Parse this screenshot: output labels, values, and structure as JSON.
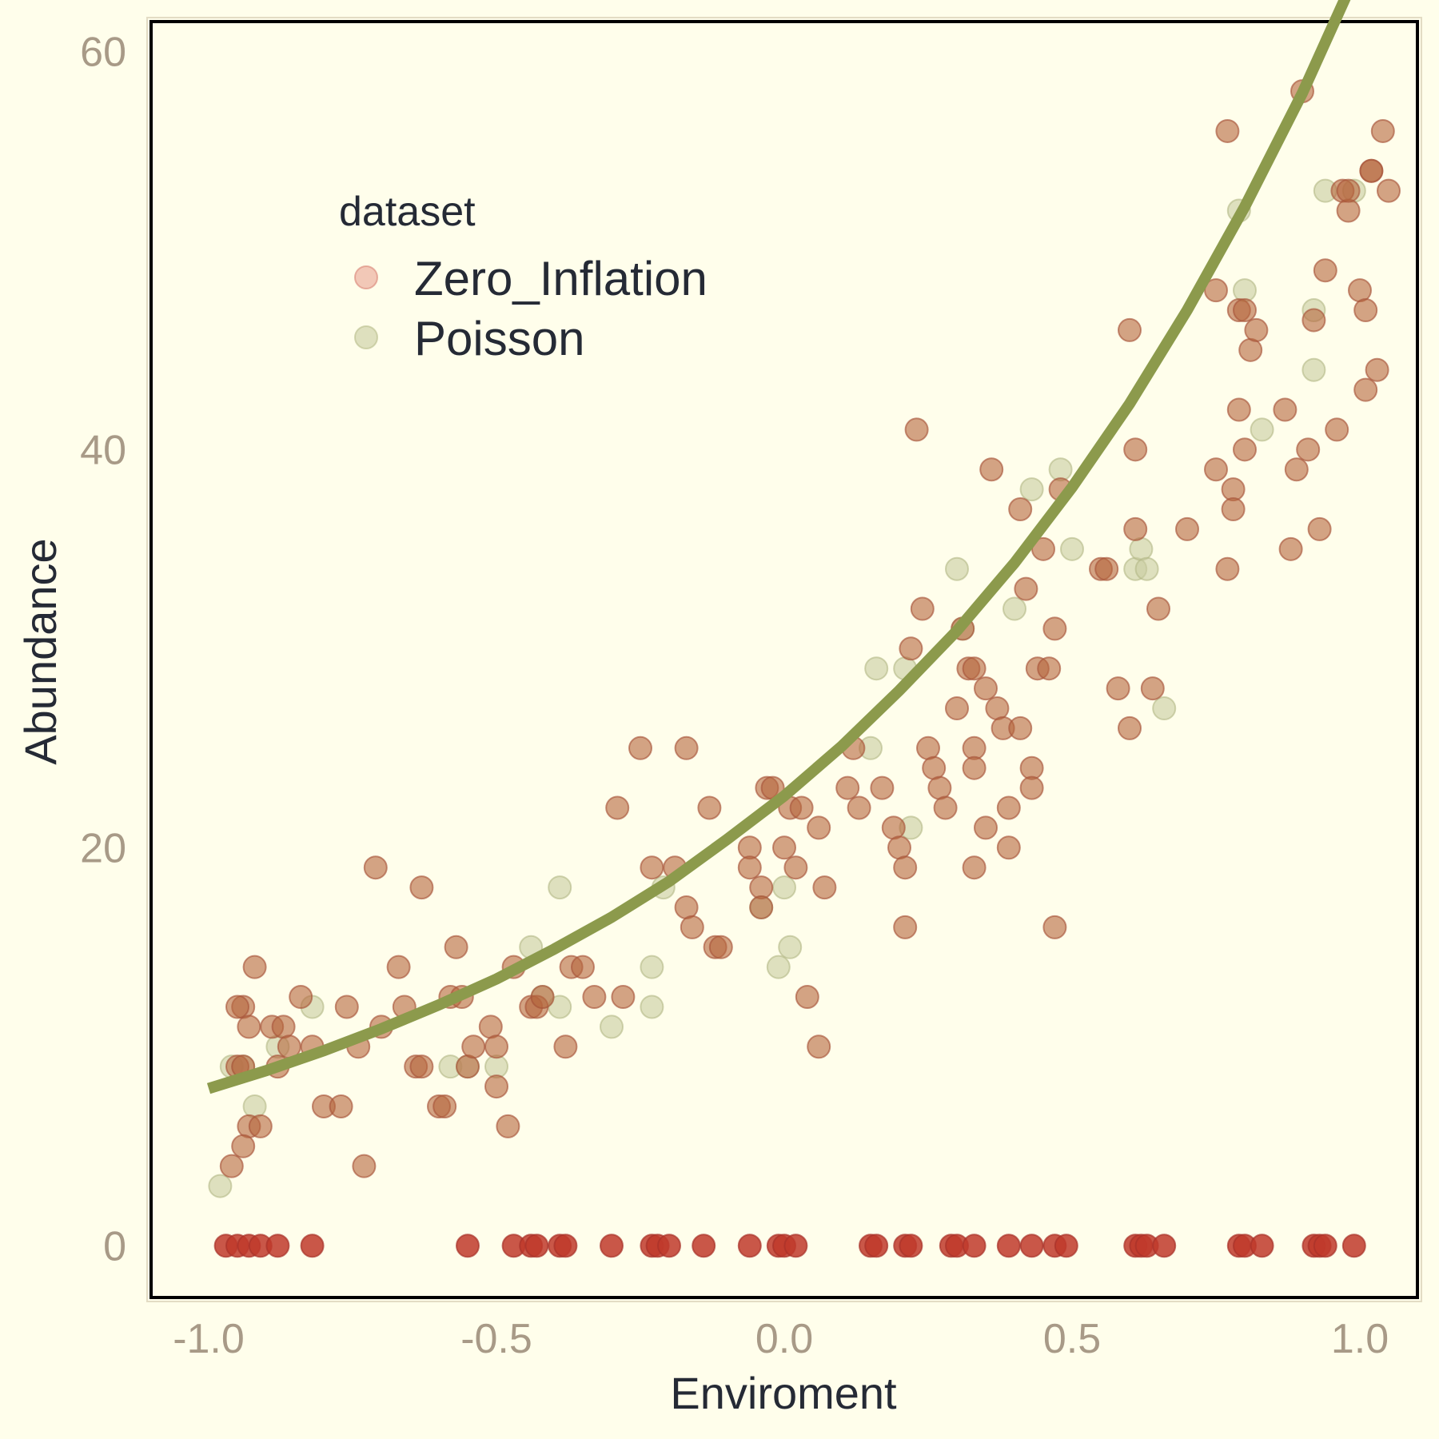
{
  "chart_data": {
    "type": "scatter",
    "xlabel": "Enviroment",
    "ylabel": "Abundance",
    "xlim": [
      -1.1,
      1.1
    ],
    "ylim": [
      -2.6,
      61.5
    ],
    "x_ticks": [
      -1.0,
      -0.5,
      0.0,
      0.5,
      1.0
    ],
    "x_tick_labels": [
      "-1.0",
      "-0.5",
      "0.0",
      "0.5",
      "1.0"
    ],
    "y_ticks": [
      0,
      20,
      40,
      60
    ],
    "y_tick_labels": [
      "0",
      "20",
      "40",
      "60"
    ],
    "grid": false,
    "legend": {
      "title": "dataset",
      "placement": "top-left",
      "entries": [
        {
          "label": "Zero_Inflation",
          "color": "#c0392b"
        },
        {
          "label": "Poisson",
          "color": "#c5c99a"
        }
      ]
    },
    "colors": {
      "zero_inflation": "#c0392b",
      "zero_inflation_brown": "#b5653e",
      "poisson": "#c8cca0",
      "fit_line": "#8c9a4c",
      "background": "#fffeeb",
      "frame": "#000000"
    },
    "series": [
      {
        "name": "Zero_Inflation",
        "points": [
          [
            -0.97,
            0
          ],
          [
            -0.95,
            0
          ],
          [
            -0.93,
            0
          ],
          [
            -0.91,
            0
          ],
          [
            -0.88,
            0
          ],
          [
            -0.82,
            0
          ],
          [
            -0.55,
            0
          ],
          [
            -0.47,
            0
          ],
          [
            -0.44,
            0
          ],
          [
            -0.43,
            0
          ],
          [
            -0.39,
            0
          ],
          [
            -0.38,
            0
          ],
          [
            -0.3,
            0
          ],
          [
            -0.23,
            0
          ],
          [
            -0.22,
            0
          ],
          [
            -0.2,
            0
          ],
          [
            -0.14,
            0
          ],
          [
            -0.06,
            0
          ],
          [
            -0.01,
            0
          ],
          [
            0.0,
            0
          ],
          [
            0.02,
            0
          ],
          [
            0.15,
            0
          ],
          [
            0.16,
            0
          ],
          [
            0.21,
            0
          ],
          [
            0.22,
            0
          ],
          [
            0.29,
            0
          ],
          [
            0.3,
            0
          ],
          [
            0.33,
            0
          ],
          [
            0.39,
            0
          ],
          [
            0.43,
            0
          ],
          [
            0.47,
            0
          ],
          [
            0.49,
            0
          ],
          [
            0.61,
            0
          ],
          [
            0.62,
            0
          ],
          [
            0.63,
            0
          ],
          [
            0.66,
            0
          ],
          [
            0.79,
            0
          ],
          [
            0.8,
            0
          ],
          [
            0.83,
            0
          ],
          [
            0.92,
            0
          ],
          [
            0.93,
            0
          ],
          [
            0.94,
            0
          ],
          [
            0.99,
            0
          ],
          [
            -0.94,
            12
          ],
          [
            -0.93,
            11
          ],
          [
            -0.92,
            14
          ],
          [
            -0.95,
            9
          ],
          [
            -0.94,
            9
          ],
          [
            -0.93,
            6
          ],
          [
            -0.91,
            6
          ],
          [
            -0.94,
            5
          ],
          [
            -0.96,
            4
          ],
          [
            -0.95,
            12
          ],
          [
            -0.89,
            11
          ],
          [
            -0.87,
            11
          ],
          [
            -0.88,
            9
          ],
          [
            -0.86,
            10
          ],
          [
            -0.84,
            12.5
          ],
          [
            -0.82,
            10
          ],
          [
            -0.8,
            7
          ],
          [
            -0.77,
            7
          ],
          [
            -0.76,
            12
          ],
          [
            -0.74,
            10
          ],
          [
            -0.73,
            4
          ],
          [
            -0.71,
            19
          ],
          [
            -0.7,
            11
          ],
          [
            -0.67,
            14
          ],
          [
            -0.66,
            12
          ],
          [
            -0.64,
            9
          ],
          [
            -0.63,
            18
          ],
          [
            -0.63,
            9
          ],
          [
            -0.6,
            7
          ],
          [
            -0.59,
            7
          ],
          [
            -0.58,
            12.5
          ],
          [
            -0.57,
            15
          ],
          [
            -0.56,
            12.5
          ],
          [
            -0.55,
            9
          ],
          [
            -0.54,
            10
          ],
          [
            -0.51,
            11
          ],
          [
            -0.5,
            10
          ],
          [
            -0.5,
            8
          ],
          [
            -0.48,
            6
          ],
          [
            -0.47,
            14
          ],
          [
            -0.44,
            12
          ],
          [
            -0.43,
            12
          ],
          [
            -0.42,
            12.5
          ],
          [
            -0.38,
            10
          ],
          [
            -0.37,
            14
          ],
          [
            -0.35,
            14
          ],
          [
            -0.33,
            12.5
          ],
          [
            -0.29,
            22
          ],
          [
            -0.28,
            12.5
          ],
          [
            -0.25,
            25
          ],
          [
            -0.23,
            19
          ],
          [
            -0.19,
            19
          ],
          [
            -0.17,
            25
          ],
          [
            -0.17,
            17
          ],
          [
            -0.16,
            16
          ],
          [
            -0.13,
            22
          ],
          [
            -0.12,
            15
          ],
          [
            -0.11,
            15
          ],
          [
            -0.06,
            20
          ],
          [
            -0.06,
            19
          ],
          [
            -0.04,
            18
          ],
          [
            -0.04,
            17
          ],
          [
            -0.03,
            23
          ],
          [
            -0.02,
            23
          ],
          [
            0.0,
            20
          ],
          [
            0.01,
            22
          ],
          [
            0.02,
            19
          ],
          [
            0.03,
            22
          ],
          [
            0.04,
            12.5
          ],
          [
            0.06,
            21
          ],
          [
            0.06,
            10
          ],
          [
            0.07,
            18
          ],
          [
            0.11,
            23
          ],
          [
            0.12,
            25
          ],
          [
            0.13,
            22
          ],
          [
            0.17,
            23
          ],
          [
            0.19,
            21
          ],
          [
            0.2,
            20
          ],
          [
            0.21,
            16
          ],
          [
            0.21,
            19
          ],
          [
            0.22,
            30
          ],
          [
            0.23,
            41
          ],
          [
            0.24,
            32
          ],
          [
            0.25,
            25
          ],
          [
            0.26,
            24
          ],
          [
            0.27,
            23
          ],
          [
            0.28,
            22
          ],
          [
            0.3,
            27
          ],
          [
            0.31,
            31
          ],
          [
            0.32,
            29
          ],
          [
            0.33,
            29
          ],
          [
            0.33,
            25
          ],
          [
            0.33,
            24
          ],
          [
            0.33,
            19
          ],
          [
            0.35,
            28
          ],
          [
            0.35,
            21
          ],
          [
            0.36,
            39
          ],
          [
            0.37,
            27
          ],
          [
            0.38,
            26
          ],
          [
            0.39,
            22
          ],
          [
            0.39,
            20
          ],
          [
            0.41,
            37
          ],
          [
            0.41,
            26
          ],
          [
            0.42,
            33
          ],
          [
            0.43,
            24
          ],
          [
            0.43,
            23
          ],
          [
            0.44,
            29
          ],
          [
            0.45,
            35
          ],
          [
            0.46,
            29
          ],
          [
            0.47,
            31
          ],
          [
            0.47,
            16
          ],
          [
            0.48,
            38
          ],
          [
            0.55,
            34
          ],
          [
            0.56,
            34
          ],
          [
            0.58,
            28
          ],
          [
            0.6,
            46
          ],
          [
            0.6,
            26
          ],
          [
            0.61,
            40
          ],
          [
            0.61,
            36
          ],
          [
            0.64,
            28
          ],
          [
            0.65,
            32
          ],
          [
            0.7,
            36
          ],
          [
            0.75,
            48
          ],
          [
            0.75,
            39
          ],
          [
            0.77,
            56
          ],
          [
            0.77,
            34
          ],
          [
            0.78,
            38
          ],
          [
            0.78,
            37
          ],
          [
            0.79,
            47
          ],
          [
            0.79,
            42
          ],
          [
            0.8,
            47
          ],
          [
            0.8,
            40
          ],
          [
            0.81,
            45
          ],
          [
            0.82,
            46
          ],
          [
            0.87,
            42
          ],
          [
            0.88,
            35
          ],
          [
            0.89,
            39
          ],
          [
            0.9,
            58
          ],
          [
            0.91,
            40
          ],
          [
            0.92,
            46.5
          ],
          [
            0.93,
            36
          ],
          [
            0.94,
            49
          ],
          [
            0.96,
            41
          ],
          [
            0.97,
            53
          ],
          [
            0.98,
            52
          ],
          [
            0.98,
            53
          ],
          [
            1.0,
            48
          ],
          [
            1.01,
            47
          ],
          [
            1.01,
            43
          ],
          [
            1.02,
            54
          ],
          [
            1.02,
            54
          ],
          [
            1.03,
            44
          ],
          [
            1.04,
            56
          ],
          [
            1.05,
            53
          ]
        ]
      },
      {
        "name": "Poisson",
        "points": [
          [
            -0.98,
            3
          ],
          [
            -0.96,
            9
          ],
          [
            -0.94,
            9
          ],
          [
            -0.92,
            7
          ],
          [
            -0.88,
            10
          ],
          [
            -0.82,
            12
          ],
          [
            -0.58,
            9
          ],
          [
            -0.55,
            9
          ],
          [
            -0.5,
            9
          ],
          [
            -0.44,
            15
          ],
          [
            -0.42,
            12.5
          ],
          [
            -0.39,
            18
          ],
          [
            -0.39,
            12
          ],
          [
            -0.3,
            11
          ],
          [
            -0.23,
            14
          ],
          [
            -0.23,
            12
          ],
          [
            -0.21,
            18
          ],
          [
            -0.04,
            17
          ],
          [
            -0.01,
            14
          ],
          [
            0.0,
            18
          ],
          [
            0.01,
            15
          ],
          [
            0.15,
            25
          ],
          [
            0.16,
            29
          ],
          [
            0.21,
            29
          ],
          [
            0.22,
            21
          ],
          [
            0.3,
            34
          ],
          [
            0.31,
            31
          ],
          [
            0.4,
            32
          ],
          [
            0.43,
            38
          ],
          [
            0.48,
            39
          ],
          [
            0.5,
            35
          ],
          [
            0.61,
            34
          ],
          [
            0.62,
            35
          ],
          [
            0.63,
            34
          ],
          [
            0.66,
            27
          ],
          [
            0.79,
            52
          ],
          [
            0.8,
            48
          ],
          [
            0.83,
            41
          ],
          [
            0.92,
            47
          ],
          [
            0.92,
            44
          ],
          [
            0.94,
            53
          ],
          [
            0.99,
            53
          ]
        ]
      },
      {
        "name": "",
        "kind": "fit-line",
        "x": [
          -1.0,
          -0.9,
          -0.8,
          -0.7,
          -0.6,
          -0.5,
          -0.4,
          -0.3,
          -0.2,
          -0.1,
          0.0,
          0.1,
          0.2,
          0.3,
          0.4,
          0.5,
          0.6,
          0.7,
          0.8,
          0.9,
          1.0
        ],
        "y": [
          7.9,
          8.8,
          9.8,
          10.9,
          12.1,
          13.4,
          14.9,
          16.5,
          18.3,
          20.4,
          22.6,
          25.1,
          27.9,
          30.9,
          34.3,
          38.1,
          42.3,
          47.0,
          52.2,
          57.9,
          64.3
        ]
      }
    ]
  }
}
